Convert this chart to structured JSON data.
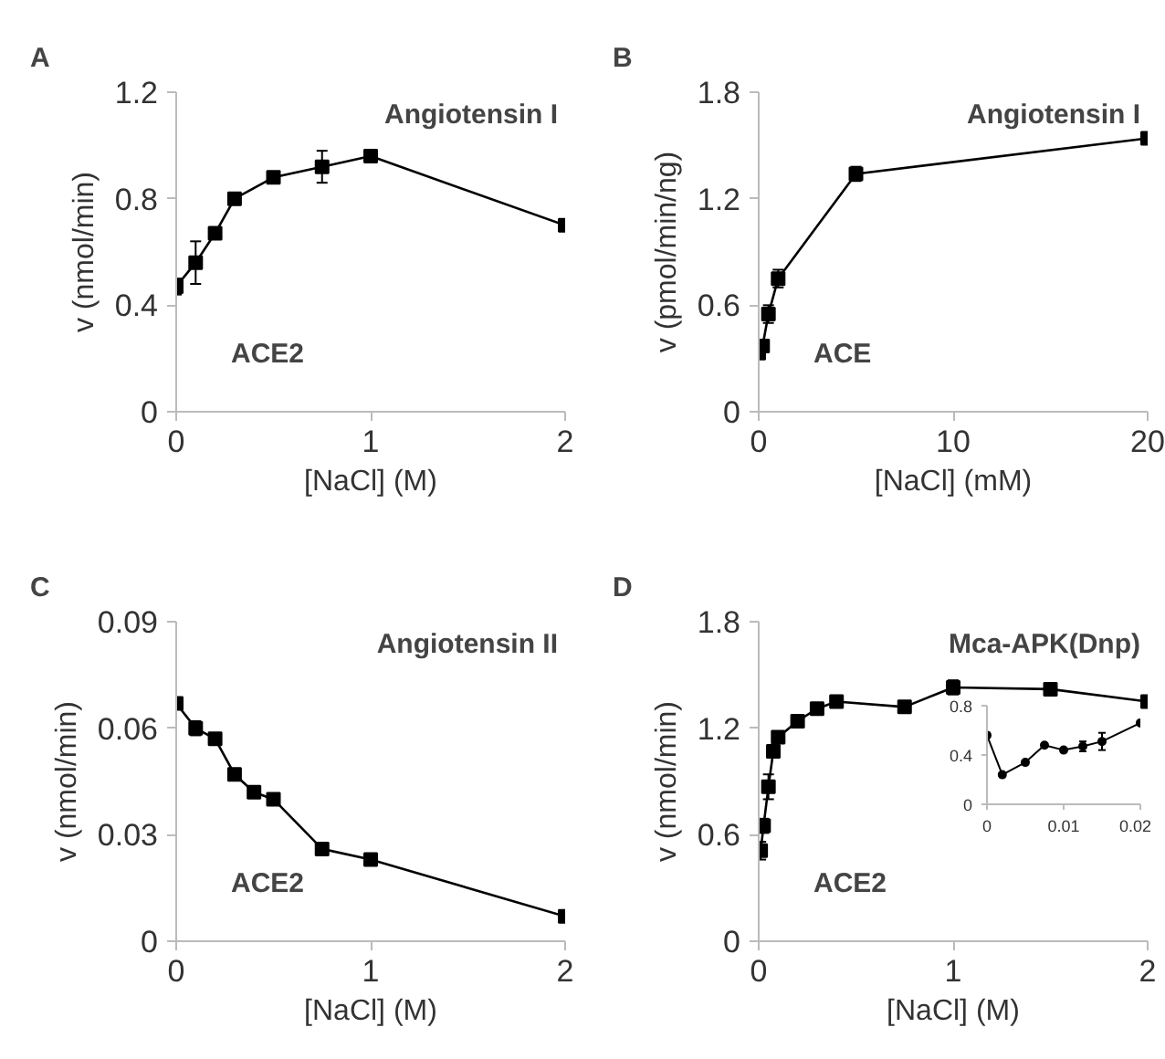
{
  "chart_data": [
    {
      "type": "line",
      "title": "A",
      "xlabel": "[NaCl] (M)",
      "ylabel": "v (nmol/min)",
      "annotations": [
        "Angiotensin I",
        "ACE2"
      ],
      "x": [
        0,
        0.1,
        0.2,
        0.3,
        0.5,
        0.75,
        1,
        2
      ],
      "xlim": [
        0,
        2
      ],
      "ylim": [
        0,
        1.2
      ],
      "xticks": [
        0,
        1,
        2
      ],
      "yticks": [
        0,
        0.4,
        0.8,
        1.2
      ],
      "marker": "square",
      "grid": false,
      "series": [
        {
          "color": "#000000",
          "values": [
            0.47,
            0.56,
            0.67,
            0.8,
            0.88,
            0.92,
            0.96,
            0.7
          ],
          "errors": [
            0.03,
            0.08,
            0.02,
            0.01,
            0.02,
            0.06,
            0.01,
            0.01
          ]
        }
      ]
    },
    {
      "type": "line",
      "title": "B",
      "xlabel": "[NaCl] (mM)",
      "ylabel": "v (pmol/min/ng)",
      "annotations": [
        "Angiotensin I",
        "ACE"
      ],
      "x": [
        0,
        0.2,
        0.5,
        1,
        5,
        20
      ],
      "xlim": [
        0,
        20
      ],
      "ylim": [
        0,
        1.8
      ],
      "xticks": [
        0,
        10,
        20
      ],
      "yticks": [
        0,
        0.6,
        1.2,
        1.8
      ],
      "marker": "square",
      "grid": false,
      "series": [
        {
          "color": "#000000",
          "values": [
            0.33,
            0.37,
            0.55,
            0.75,
            1.34,
            1.54
          ],
          "errors": [
            0.03,
            0.03,
            0.05,
            0.05,
            0.04,
            0.01
          ]
        }
      ]
    },
    {
      "type": "line",
      "title": "C",
      "xlabel": "[NaCl] (M)",
      "ylabel": "v (nmol/min)",
      "annotations": [
        "Angiotensin II",
        "ACE2"
      ],
      "x": [
        0,
        0.1,
        0.2,
        0.3,
        0.4,
        0.5,
        0.75,
        1,
        2
      ],
      "xlim": [
        0,
        2
      ],
      "ylim": [
        0,
        0.09
      ],
      "xticks": [
        0,
        1,
        2
      ],
      "yticks": [
        0,
        0.03,
        0.06,
        0.09
      ],
      "marker": "square",
      "grid": false,
      "series": [
        {
          "color": "#000000",
          "values": [
            0.067,
            0.06,
            0.057,
            0.047,
            0.042,
            0.04,
            0.026,
            0.023,
            0.007
          ],
          "errors": [
            0.001,
            0.002,
            0.001,
            0.001,
            0.001,
            0.001,
            0.001,
            0.001,
            0.001
          ]
        }
      ]
    },
    {
      "type": "line",
      "title": "D",
      "xlabel": "[NaCl] (M)",
      "ylabel": "v (nmol/min)",
      "annotations": [
        "Mca-APK(Dnp)",
        "ACE2"
      ],
      "x": [
        0.01,
        0.025,
        0.05,
        0.075,
        0.1,
        0.2,
        0.3,
        0.4,
        0.75,
        1,
        1.5,
        2
      ],
      "xlim": [
        0,
        2
      ],
      "ylim": [
        0,
        1.8
      ],
      "xticks": [
        0,
        1,
        2
      ],
      "yticks": [
        0,
        0.6,
        1.2,
        1.8
      ],
      "marker": "square",
      "grid": false,
      "series": [
        {
          "color": "#000000",
          "values": [
            0.51,
            0.65,
            0.87,
            1.07,
            1.15,
            1.24,
            1.31,
            1.35,
            1.32,
            1.43,
            1.42,
            1.35
          ],
          "errors": [
            0.05,
            0.04,
            0.07,
            0.02,
            0.02,
            0.02,
            0.02,
            0.01,
            0.02,
            0.04,
            0.01,
            0.01
          ]
        }
      ]
    },
    {
      "type": "line",
      "x": [
        0,
        0.002,
        0.005,
        0.0075,
        0.01,
        0.0125,
        0.015,
        0.02
      ],
      "xlim": [
        0,
        0.02
      ],
      "ylim": [
        0,
        0.8
      ],
      "xticks": [
        0,
        0.01,
        0.02
      ],
      "yticks": [
        0,
        0.4,
        0.8
      ],
      "marker": "circle",
      "grid": false,
      "series": [
        {
          "color": "#000000",
          "values": [
            0.56,
            0.24,
            0.34,
            0.48,
            0.44,
            0.47,
            0.51,
            0.66
          ],
          "errors": [
            0.02,
            0.01,
            0.01,
            0.01,
            0.01,
            0.04,
            0.07,
            0.01
          ]
        }
      ]
    }
  ]
}
